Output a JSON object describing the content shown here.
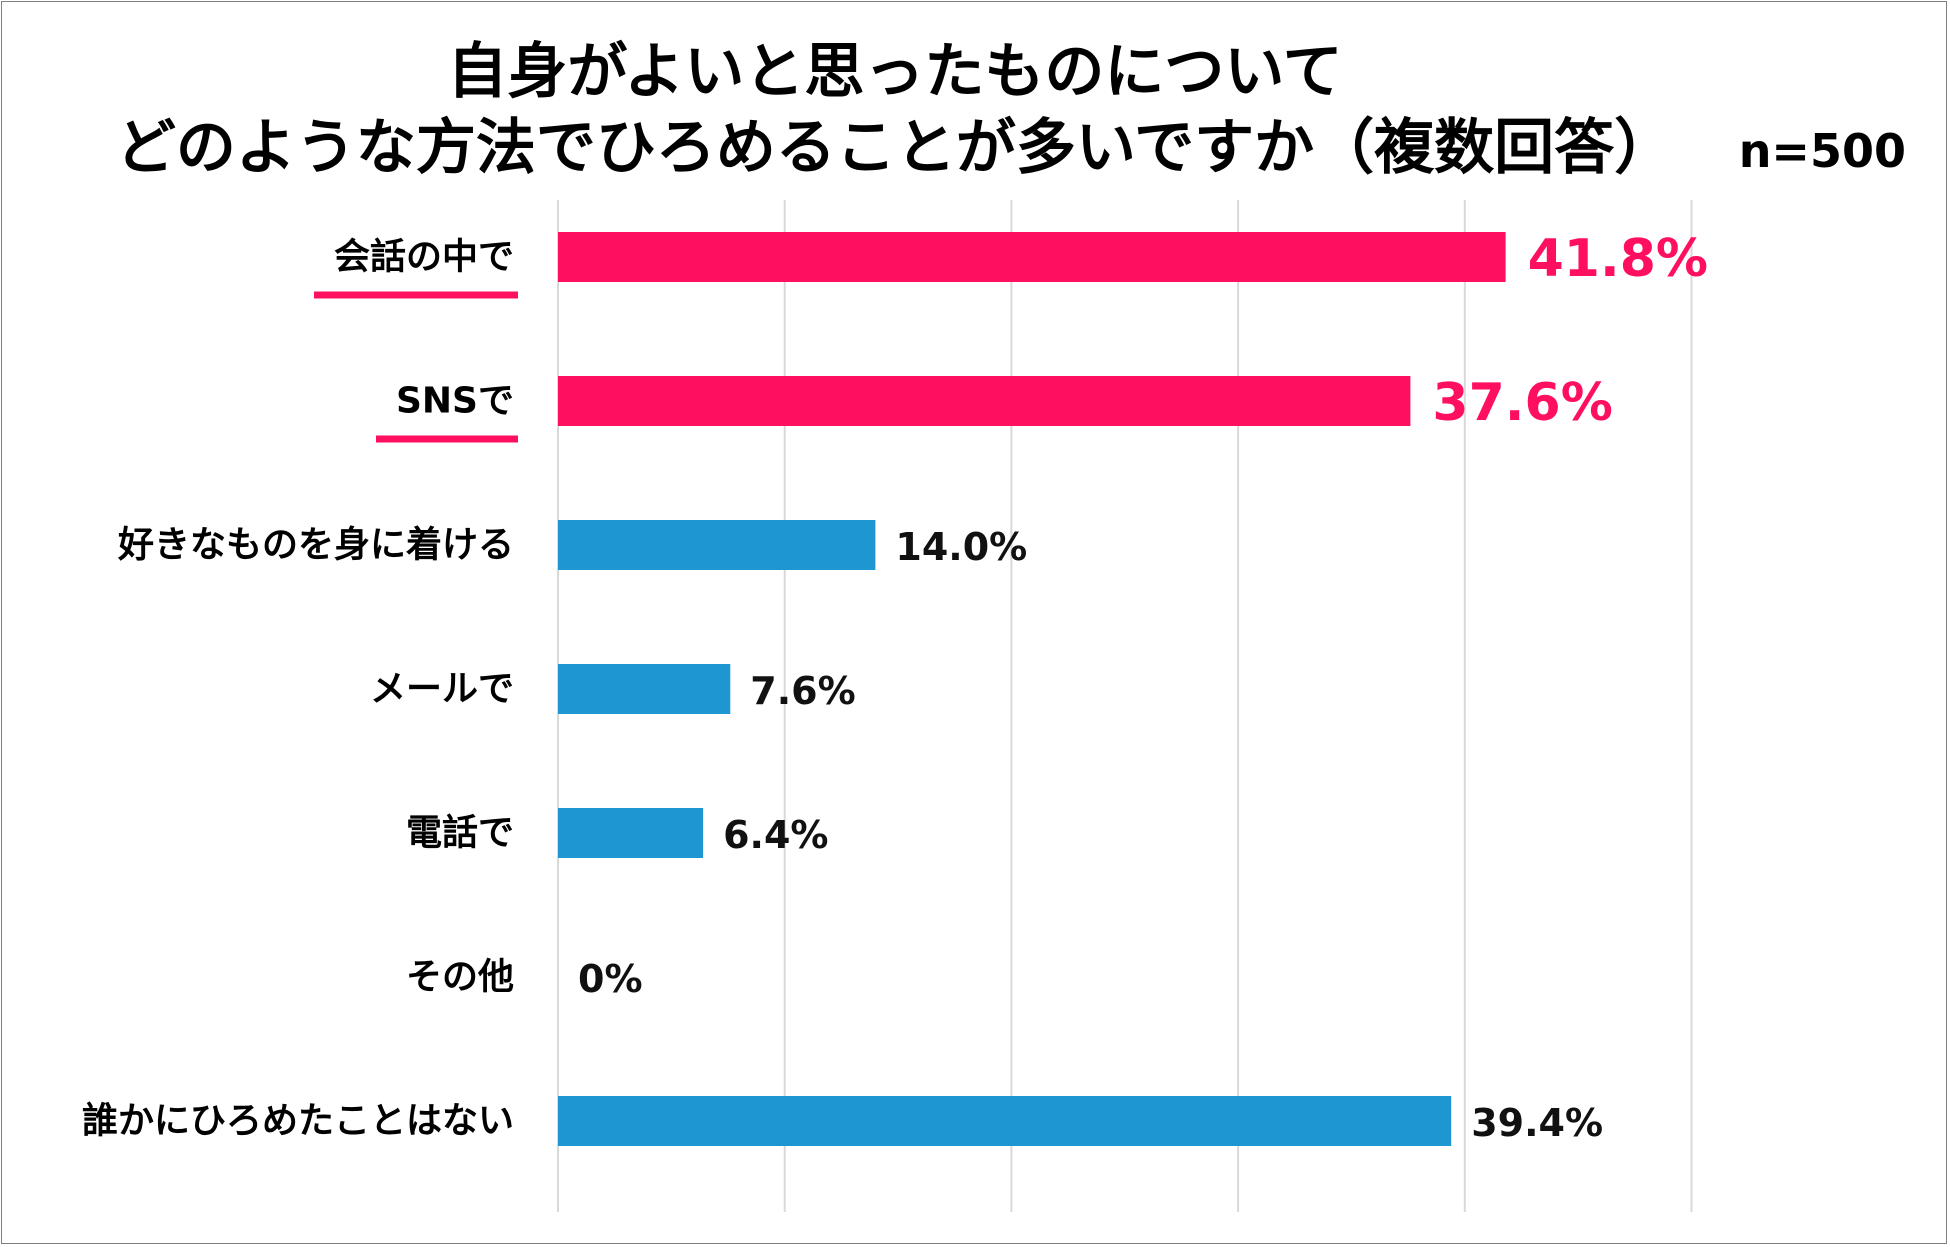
{
  "title_line1": "自身がよいと思ったものについて",
  "title_line2": "どのような方法でひろめることが多いですか（複数回答）",
  "sample_size": "n=500",
  "colors": {
    "highlight": "#ff0f5f",
    "normal": "#1e96d2",
    "grid": "#d9d9d9"
  },
  "chart_data": {
    "type": "bar",
    "orientation": "horizontal",
    "title": "自身がよいと思ったものについて どのような方法でひろめることが多いですか（複数回答）",
    "categories": [
      "会話の中で",
      "SNSで",
      "好きなものを身に着ける",
      "メールで",
      "電話で",
      "その他",
      "誰かにひろめたことはない"
    ],
    "values": [
      41.8,
      37.6,
      14.0,
      7.6,
      6.4,
      0,
      39.4
    ],
    "value_labels": [
      "41.8%",
      "37.6%",
      "14.0%",
      "7.6%",
      "6.4%",
      "0%",
      "39.4%"
    ],
    "highlighted": [
      true,
      true,
      false,
      false,
      false,
      false,
      false
    ],
    "xlim": [
      0,
      50
    ],
    "grid": true,
    "unit": "%"
  }
}
